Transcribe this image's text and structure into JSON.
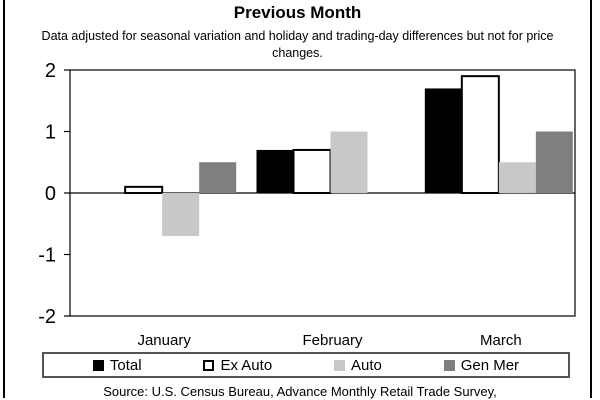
{
  "title": "Previous Month",
  "subtitle": "Data adjusted for seasonal variation and holiday and trading-day differences but not for price changes.",
  "source": "Source: U.S. Census Bureau, Advance Monthly Retail Trade Survey,",
  "colors": {
    "Total": "#000000",
    "Ex Auto": "#ffffff",
    "Auto": "#c8c8c8",
    "Gen Mer": "#7f7f7f"
  },
  "chart_data": {
    "type": "bar",
    "title": "Previous Month",
    "categories": [
      "January",
      "February",
      "March"
    ],
    "series": [
      {
        "name": "Total",
        "values": [
          0.0,
          0.7,
          1.7
        ]
      },
      {
        "name": "Ex Auto",
        "values": [
          0.1,
          0.7,
          1.9
        ]
      },
      {
        "name": "Auto",
        "values": [
          -0.7,
          1.0,
          0.5
        ]
      },
      {
        "name": "Gen Mer",
        "values": [
          0.5,
          null,
          1.0
        ]
      }
    ],
    "ylim": [
      -2,
      2
    ],
    "yticks": [
      "2",
      "1",
      "0",
      "-1",
      "-2"
    ],
    "grid": false,
    "legend_position": "bottom"
  }
}
